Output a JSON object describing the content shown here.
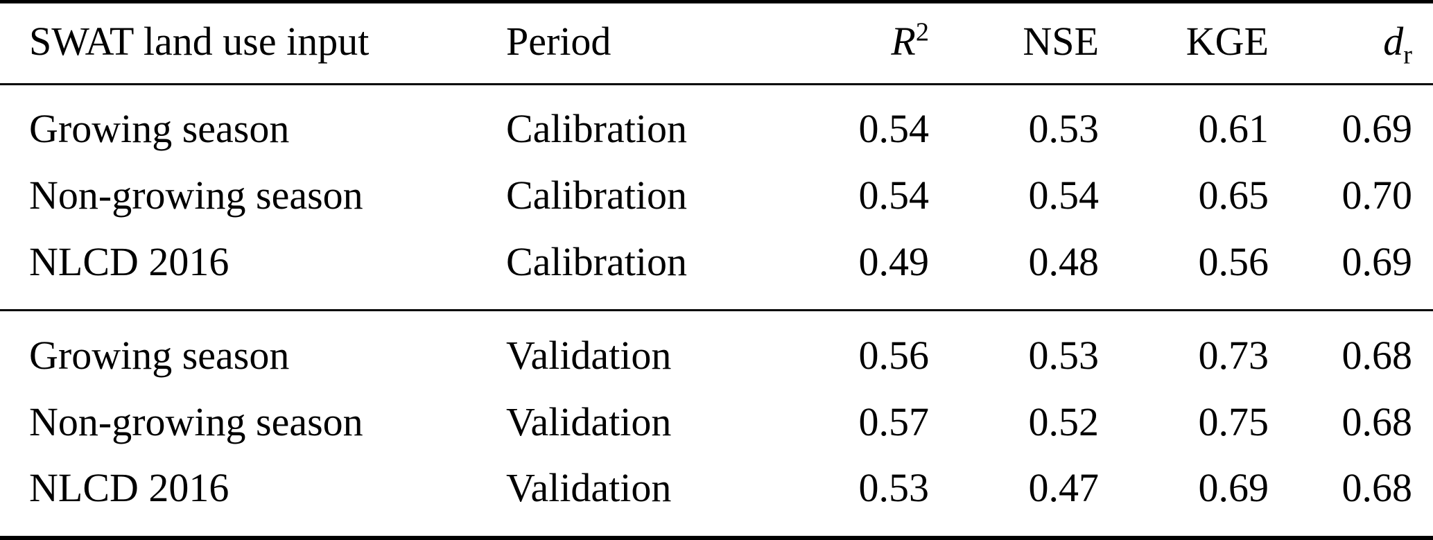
{
  "table": {
    "headers": {
      "land_use": "SWAT land use input",
      "period": "Period",
      "r2_base": "R",
      "r2_sup": "2",
      "nse": "NSE",
      "kge": "KGE",
      "dr_base": "d",
      "dr_sub": "r"
    }
  },
  "chart_data": {
    "type": "table",
    "columns": [
      "SWAT land use input",
      "Period",
      "R^2",
      "NSE",
      "KGE",
      "d_r"
    ],
    "sections": [
      {
        "period": "Calibration",
        "rows": [
          [
            "Growing season",
            "Calibration",
            "0.54",
            "0.53",
            "0.61",
            "0.69"
          ],
          [
            "Non-growing season",
            "Calibration",
            "0.54",
            "0.54",
            "0.65",
            "0.70"
          ],
          [
            "NLCD 2016",
            "Calibration",
            "0.49",
            "0.48",
            "0.56",
            "0.69"
          ]
        ]
      },
      {
        "period": "Validation",
        "rows": [
          [
            "Growing season",
            "Validation",
            "0.56",
            "0.53",
            "0.73",
            "0.68"
          ],
          [
            "Non-growing season",
            "Validation",
            "0.57",
            "0.52",
            "0.75",
            "0.68"
          ],
          [
            "NLCD 2016",
            "Validation",
            "0.53",
            "0.47",
            "0.69",
            "0.68"
          ]
        ]
      }
    ]
  }
}
